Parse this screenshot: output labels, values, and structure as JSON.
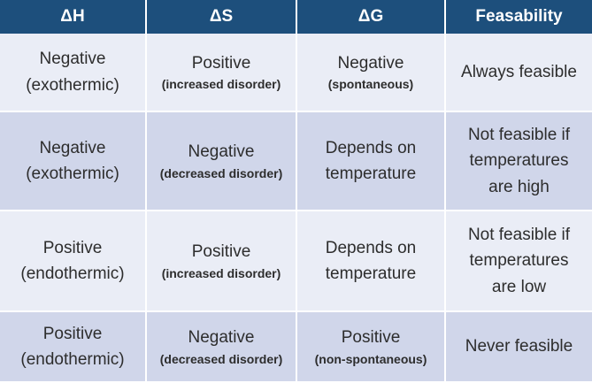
{
  "header": {
    "dH": "ΔH",
    "dS": "ΔS",
    "dG": "ΔG",
    "feasibility": "Feasability"
  },
  "rows": [
    {
      "dH": {
        "main": "Negative",
        "sub": "(exothermic)"
      },
      "dS": {
        "main": "Positive",
        "sub": "(increased disorder)"
      },
      "dG": {
        "main": "Negative",
        "sub": "(spontaneous)"
      },
      "feasibility": {
        "line1": "Always feasible"
      }
    },
    {
      "dH": {
        "main": "Negative",
        "sub": "(exothermic)"
      },
      "dS": {
        "main": "Negative",
        "sub": "(decreased disorder)"
      },
      "dG": {
        "line1": "Depends on",
        "line2": "temperature"
      },
      "feasibility": {
        "line1": "Not feasible if",
        "line2": "temperatures",
        "line3": "are high"
      }
    },
    {
      "dH": {
        "main": "Positive",
        "sub": "(endothermic)"
      },
      "dS": {
        "main": "Positive",
        "sub": "(increased disorder)"
      },
      "dG": {
        "line1": "Depends on",
        "line2": "temperature"
      },
      "feasibility": {
        "line1": "Not feasible if",
        "line2": "temperatures",
        "line3": "are low"
      }
    },
    {
      "dH": {
        "main": "Positive",
        "sub": "(endothermic)"
      },
      "dS": {
        "main": "Negative",
        "sub": "(decreased disorder)"
      },
      "dG": {
        "main": "Positive",
        "sub": "(non-spontaneous)"
      },
      "feasibility": {
        "line1": "Never feasible"
      }
    }
  ],
  "colors": {
    "header_bg": "#1d4f7c",
    "header_text": "#ffffff",
    "row_light": "#eaedf6",
    "row_dark": "#d0d6ea",
    "body_text": "#2d2d2d"
  }
}
